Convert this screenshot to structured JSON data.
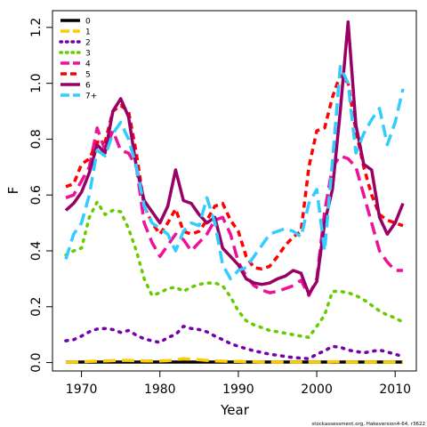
{
  "chart_data": {
    "type": "line",
    "xlabel": "Year",
    "ylabel": "F",
    "xlim": [
      1966.3,
      2012.7
    ],
    "ylim": [
      -0.03,
      1.26
    ],
    "x_ticks": [
      1970,
      1980,
      1990,
      2000,
      2010
    ],
    "y_ticks": [
      0.0,
      0.2,
      0.4,
      0.6,
      0.8,
      1.0,
      1.2
    ],
    "x_tick_labels": [
      "1970",
      "1980",
      "1990",
      "2000",
      "2010"
    ],
    "y_tick_labels": [
      "0.0",
      "0.2",
      "0.4",
      "0.6",
      "0.8",
      "1.0",
      "1.2"
    ],
    "legend_position": "top-left",
    "footnote": "stockassessment.org, Hakeversion4-64, r3622",
    "x": [
      1968,
      1969,
      1970,
      1971,
      1972,
      1973,
      1974,
      1975,
      1976,
      1977,
      1978,
      1979,
      1980,
      1981,
      1982,
      1983,
      1984,
      1985,
      1986,
      1987,
      1988,
      1989,
      1990,
      1991,
      1992,
      1993,
      1994,
      1995,
      1996,
      1997,
      1998,
      1999,
      2000,
      2001,
      2002,
      2003,
      2004,
      2005,
      2006,
      2007,
      2008,
      2009,
      2010,
      2011
    ],
    "series": [
      {
        "name": "0",
        "color": "#000000",
        "dash": "solid",
        "values": [
          0.002,
          0.002,
          0.002,
          0.002,
          0.002,
          0.002,
          0.002,
          0.002,
          0.002,
          0.002,
          0.002,
          0.002,
          0.002,
          0.002,
          0.002,
          0.002,
          0.002,
          0.002,
          0.002,
          0.002,
          0.002,
          0.002,
          0.002,
          0.002,
          0.002,
          0.002,
          0.002,
          0.002,
          0.002,
          0.002,
          0.002,
          0.002,
          0.002,
          0.002,
          0.002,
          0.002,
          0.002,
          0.002,
          0.002,
          0.002,
          0.002,
          0.002,
          0.002,
          0.002
        ]
      },
      {
        "name": "1",
        "color": "#ffcc00",
        "dash": "longdash",
        "values": [
          0.002,
          0.002,
          0.003,
          0.004,
          0.005,
          0.006,
          0.007,
          0.008,
          0.008,
          0.007,
          0.006,
          0.006,
          0.006,
          0.007,
          0.01,
          0.014,
          0.012,
          0.01,
          0.008,
          0.006,
          0.005,
          0.004,
          0.004,
          0.003,
          0.003,
          0.002,
          0.002,
          0.002,
          0.002,
          0.002,
          0.002,
          0.002,
          0.002,
          0.002,
          0.003,
          0.003,
          0.002,
          0.002,
          0.002,
          0.002,
          0.002,
          0.002,
          0.002,
          0.002
        ]
      },
      {
        "name": "2",
        "color": "#7700aa",
        "dash": "dotted",
        "values": [
          0.078,
          0.082,
          0.095,
          0.11,
          0.12,
          0.122,
          0.118,
          0.108,
          0.115,
          0.098,
          0.085,
          0.078,
          0.072,
          0.09,
          0.1,
          0.13,
          0.122,
          0.118,
          0.11,
          0.095,
          0.082,
          0.068,
          0.058,
          0.05,
          0.042,
          0.036,
          0.03,
          0.026,
          0.022,
          0.018,
          0.016,
          0.014,
          0.03,
          0.042,
          0.058,
          0.055,
          0.045,
          0.04,
          0.035,
          0.04,
          0.045,
          0.038,
          0.03,
          0.022
        ]
      },
      {
        "name": "3",
        "color": "#66cc00",
        "dash": "dotted",
        "values": [
          0.385,
          0.4,
          0.41,
          0.52,
          0.575,
          0.53,
          0.545,
          0.54,
          0.48,
          0.4,
          0.3,
          0.24,
          0.25,
          0.265,
          0.27,
          0.255,
          0.27,
          0.28,
          0.285,
          0.285,
          0.275,
          0.235,
          0.185,
          0.15,
          0.135,
          0.125,
          0.115,
          0.11,
          0.105,
          0.1,
          0.095,
          0.09,
          0.13,
          0.17,
          0.255,
          0.255,
          0.25,
          0.24,
          0.225,
          0.205,
          0.185,
          0.17,
          0.16,
          0.145
        ]
      },
      {
        "name": "4",
        "color": "#ee1199",
        "dash": "longdash",
        "values": [
          0.59,
          0.6,
          0.65,
          0.7,
          0.84,
          0.76,
          0.83,
          0.76,
          0.75,
          0.7,
          0.5,
          0.43,
          0.38,
          0.42,
          0.46,
          0.44,
          0.4,
          0.43,
          0.46,
          0.51,
          0.52,
          0.46,
          0.36,
          0.31,
          0.275,
          0.26,
          0.25,
          0.255,
          0.265,
          0.275,
          0.295,
          0.24,
          0.3,
          0.54,
          0.7,
          0.74,
          0.73,
          0.7,
          0.6,
          0.5,
          0.4,
          0.36,
          0.33,
          0.33
        ]
      },
      {
        "name": "5",
        "color": "#ff0000",
        "dash": "dashed",
        "values": [
          0.63,
          0.64,
          0.71,
          0.73,
          0.79,
          0.79,
          0.9,
          0.92,
          0.9,
          0.75,
          0.56,
          0.5,
          0.46,
          0.5,
          0.55,
          0.47,
          0.46,
          0.47,
          0.51,
          0.56,
          0.57,
          0.51,
          0.47,
          0.38,
          0.34,
          0.335,
          0.345,
          0.38,
          0.42,
          0.45,
          0.47,
          0.7,
          0.83,
          0.84,
          0.95,
          1.03,
          1.0,
          0.83,
          0.7,
          0.6,
          0.53,
          0.51,
          0.5,
          0.49
        ]
      },
      {
        "name": "6",
        "color": "#990066",
        "dash": "solid",
        "values": [
          0.545,
          0.57,
          0.61,
          0.68,
          0.78,
          0.75,
          0.9,
          0.945,
          0.88,
          0.7,
          0.58,
          0.54,
          0.5,
          0.56,
          0.69,
          0.58,
          0.57,
          0.53,
          0.5,
          0.52,
          0.41,
          0.38,
          0.35,
          0.3,
          0.285,
          0.28,
          0.285,
          0.3,
          0.31,
          0.33,
          0.32,
          0.245,
          0.29,
          0.5,
          0.62,
          0.9,
          1.22,
          0.85,
          0.71,
          0.69,
          0.52,
          0.46,
          0.5,
          0.57
        ]
      },
      {
        "name": "7+",
        "color": "#33ccff",
        "dash": "longdash",
        "values": [
          0.37,
          0.46,
          0.5,
          0.6,
          0.76,
          0.74,
          0.82,
          0.86,
          0.8,
          0.7,
          0.56,
          0.5,
          0.48,
          0.46,
          0.4,
          0.47,
          0.5,
          0.49,
          0.59,
          0.5,
          0.35,
          0.3,
          0.33,
          0.34,
          0.38,
          0.42,
          0.46,
          0.47,
          0.48,
          0.47,
          0.45,
          0.57,
          0.62,
          0.4,
          0.72,
          1.06,
          1.0,
          0.75,
          0.82,
          0.87,
          0.91,
          0.78,
          0.86,
          0.98
        ]
      }
    ]
  }
}
